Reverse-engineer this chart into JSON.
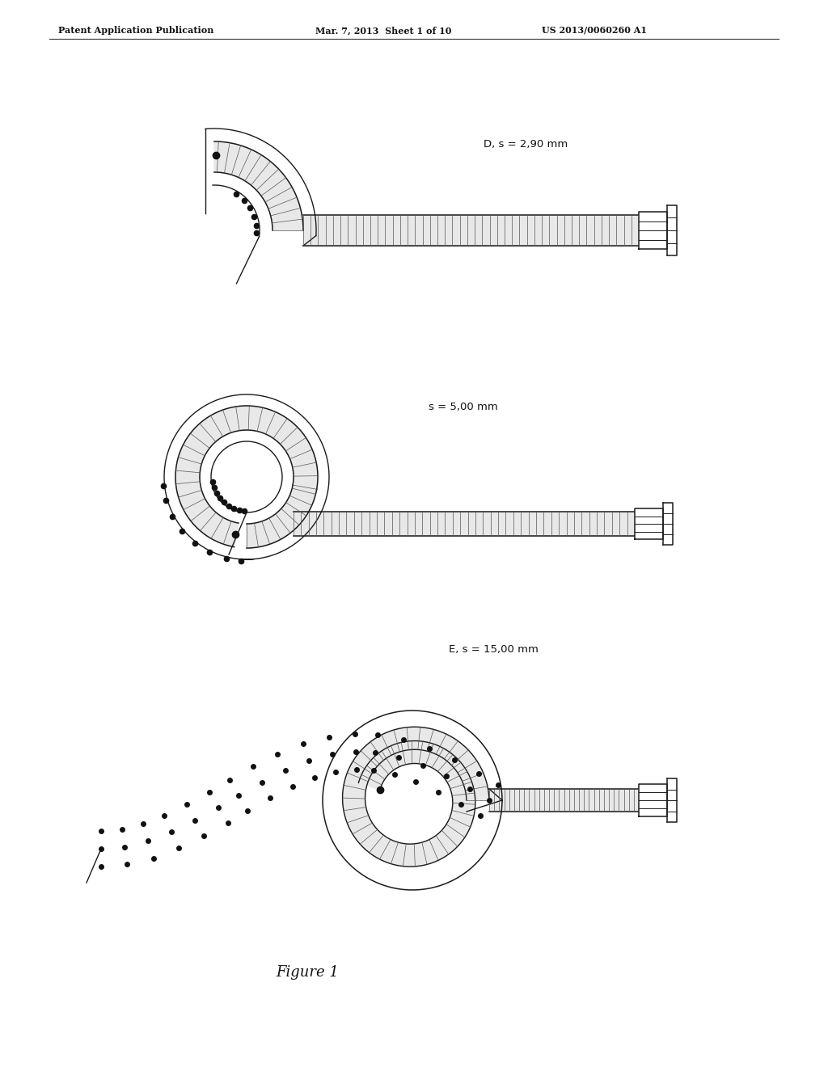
{
  "bg_color": "#ffffff",
  "header_left": "Patent Application Publication",
  "header_mid": "Mar. 7, 2013  Sheet 1 of 10",
  "header_right": "US 2013/0060260 A1",
  "figure_caption": "Figure 1",
  "label_D1": "D, s = 2,90 mm",
  "label_D2": "s = 5,00 mm",
  "label_E": "E, s = 15,00 mm",
  "line_color": "#1a1a1a",
  "dot_color": "#111111",
  "segment_fill": "#e8e8e8",
  "segment_line": "#555555",
  "white": "#ffffff"
}
